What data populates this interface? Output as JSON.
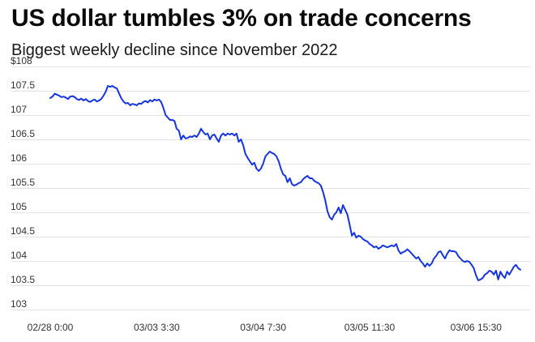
{
  "colors": {
    "line": "#1434e0",
    "grid": "#e3e3e3",
    "text": "#111111"
  },
  "chart_data": {
    "type": "line",
    "title": "US dollar tumbles 3% on trade concerns",
    "subtitle": "Biggest weekly decline since November 2022",
    "ylim": [
      103,
      108
    ],
    "y_ticks": [
      "103",
      "103.5",
      "104",
      "104.5",
      "105",
      "105.5",
      "106",
      "106.5",
      "107",
      "107.5",
      "$108"
    ],
    "x_ticks": [
      "02/28 0:00",
      "03/03 3:30",
      "03/04 7:30",
      "03/05 11:30",
      "03/06 15:30"
    ],
    "x_tick_index": [
      0,
      48,
      96,
      144,
      192
    ],
    "grid": true,
    "legend": "none",
    "series": [
      {
        "values": [
          107.35,
          107.38,
          107.44,
          107.42,
          107.4,
          107.37,
          107.38,
          107.36,
          107.33,
          107.38,
          107.39,
          107.37,
          107.33,
          107.31,
          107.34,
          107.3,
          107.33,
          107.29,
          107.27,
          107.3,
          107.32,
          107.28,
          107.3,
          107.33,
          107.4,
          107.48,
          107.6,
          107.58,
          107.6,
          107.57,
          107.55,
          107.45,
          107.35,
          107.28,
          107.24,
          107.25,
          107.2,
          107.23,
          107.22,
          107.2,
          107.24,
          107.23,
          107.27,
          107.29,
          107.26,
          107.31,
          107.28,
          107.32,
          107.3,
          107.32,
          107.27,
          107.15,
          107.0,
          106.95,
          106.9,
          106.9,
          106.88,
          106.72,
          106.68,
          106.5,
          106.58,
          106.52,
          106.53,
          106.56,
          106.55,
          106.58,
          106.55,
          106.62,
          106.72,
          106.65,
          106.6,
          106.62,
          106.5,
          106.58,
          106.6,
          106.52,
          106.45,
          106.58,
          106.62,
          106.58,
          106.62,
          106.6,
          106.62,
          106.58,
          106.62,
          106.45,
          106.5,
          106.38,
          106.2,
          106.12,
          106.05,
          105.98,
          106.02,
          105.9,
          105.85,
          105.9,
          106.0,
          106.15,
          106.2,
          106.25,
          106.22,
          106.2,
          106.15,
          106.05,
          105.9,
          105.78,
          105.75,
          105.62,
          105.7,
          105.58,
          105.55,
          105.57,
          105.6,
          105.62,
          105.68,
          105.72,
          105.75,
          105.7,
          105.7,
          105.65,
          105.62,
          105.6,
          105.55,
          105.42,
          105.25,
          105.02,
          104.9,
          104.85,
          104.95,
          105.0,
          105.1,
          104.98,
          105.15,
          105.05,
          104.95,
          104.75,
          104.52,
          104.58,
          104.48,
          104.52,
          104.5,
          104.45,
          104.42,
          104.4,
          104.35,
          104.32,
          104.28,
          104.3,
          104.25,
          104.28,
          104.32,
          104.3,
          104.28,
          104.3,
          104.32,
          104.3,
          104.35,
          104.22,
          104.15,
          104.18,
          104.2,
          104.24,
          104.2,
          104.15,
          104.1,
          104.05,
          104.08,
          104.0,
          103.95,
          103.88,
          103.95,
          103.9,
          103.95,
          104.05,
          104.1,
          104.18,
          104.2,
          104.12,
          104.05,
          104.15,
          104.22,
          104.2,
          104.2,
          104.18,
          104.1,
          104.05,
          104.0,
          103.98,
          104.0,
          103.98,
          103.92,
          103.85,
          103.7,
          103.6,
          103.62,
          103.65,
          103.72,
          103.75,
          103.8,
          103.78,
          103.72,
          103.8,
          103.62,
          103.78,
          103.7,
          103.65,
          103.78,
          103.72,
          103.8,
          103.88,
          103.92,
          103.85,
          103.82
        ]
      }
    ]
  }
}
